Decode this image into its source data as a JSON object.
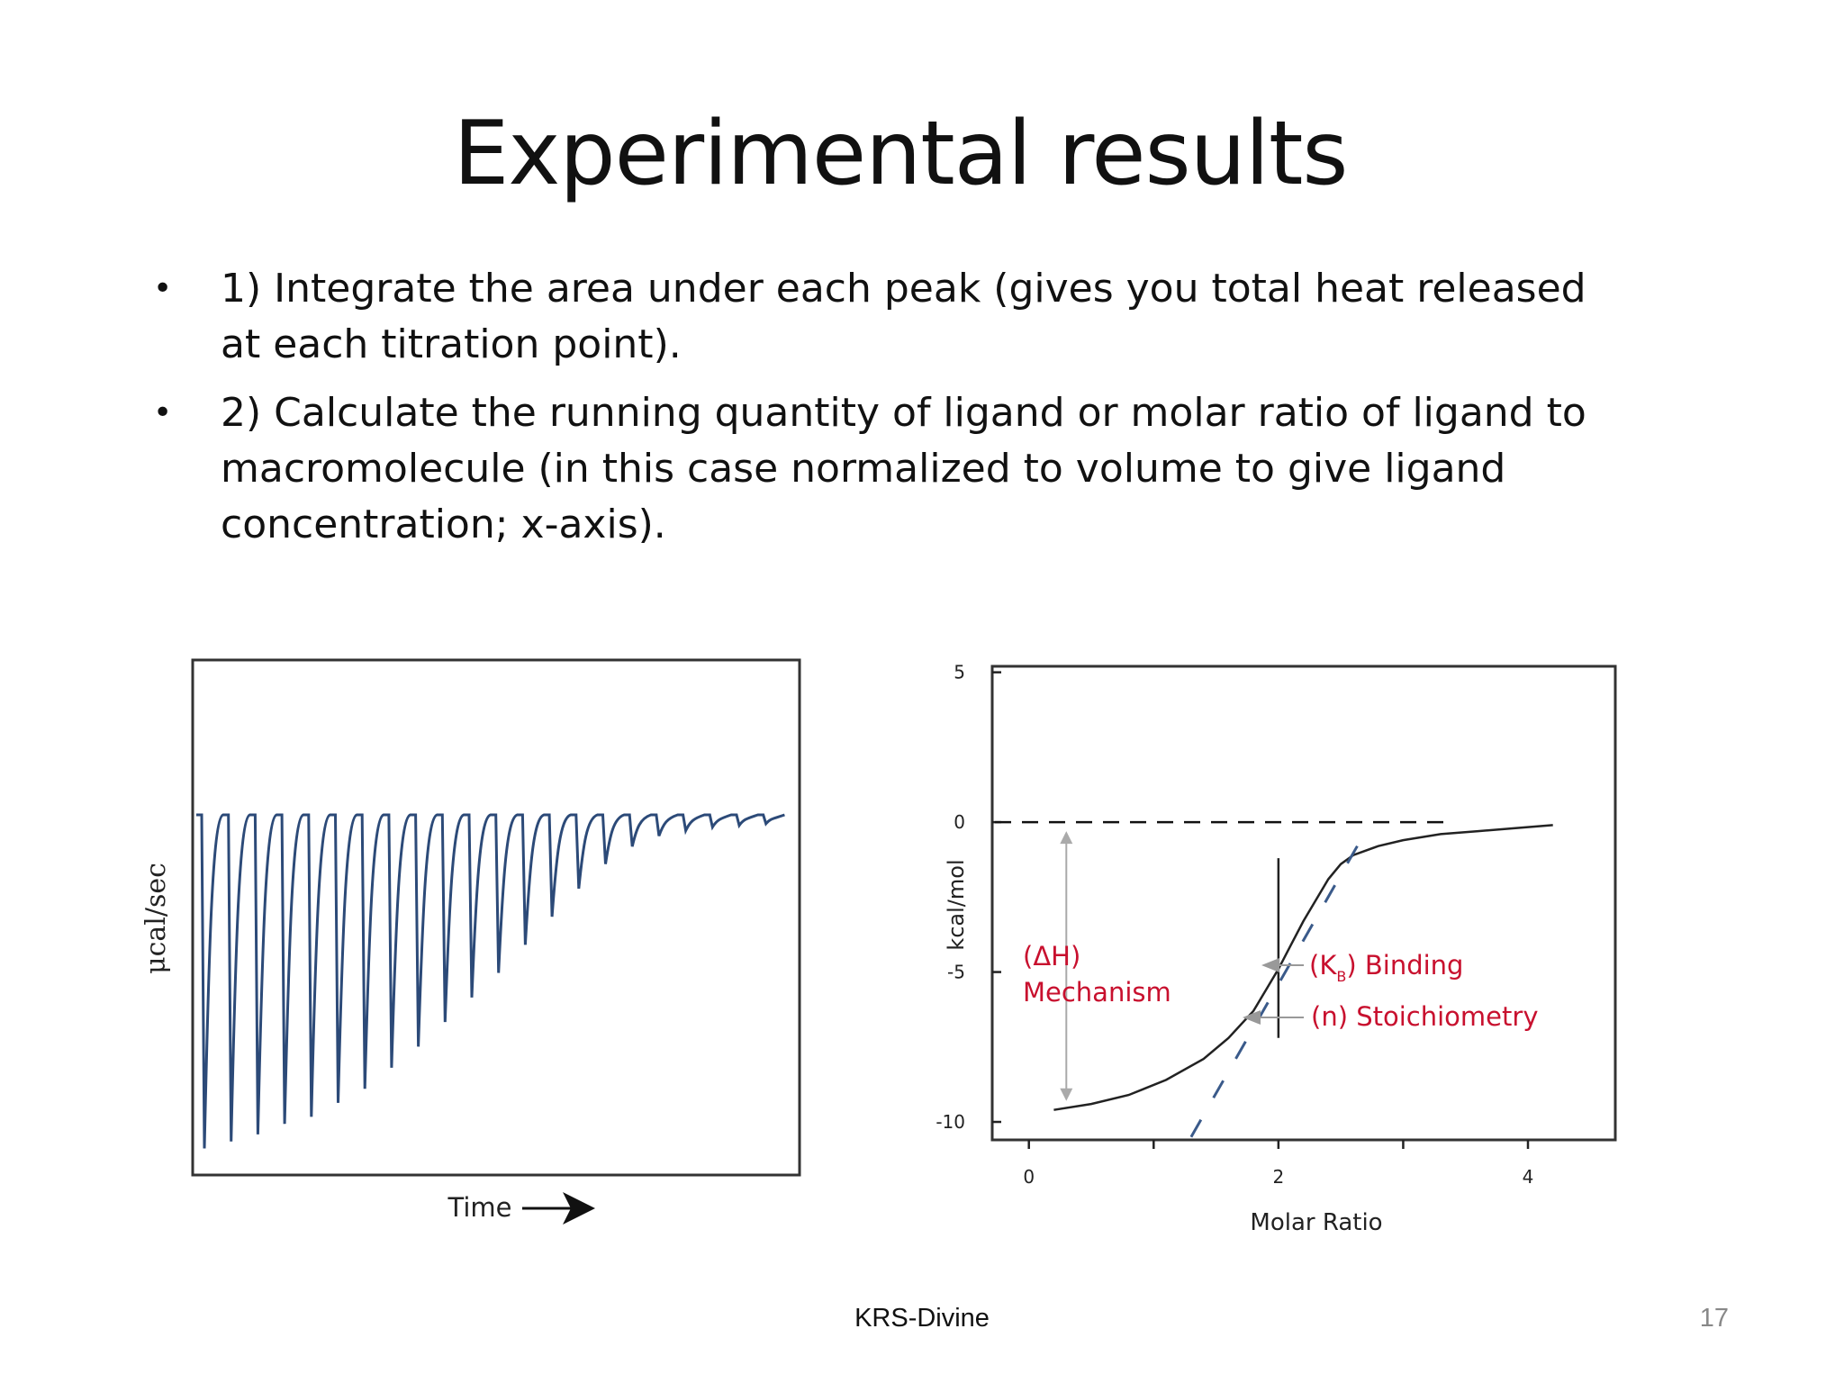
{
  "slide": {
    "title": "Experimental results",
    "bullets": [
      "1) Integrate the area under each peak (gives you total heat released at each titration point).",
      "2) Calculate the running quantity of ligand or molar ratio of ligand to macromolecule (in this case normalized to volume to give ligand concentration; x-axis)."
    ],
    "footer": "KRS-Divine",
    "page_number": "17"
  },
  "colors": {
    "thermogram_line": "#2c4a78",
    "annotation_red": "#c8102e",
    "axis": "#222222",
    "arrow_gray": "#999999"
  },
  "chart_data": [
    {
      "type": "line",
      "ylabel": "μcal/sec",
      "xlabel": "Time",
      "peak_depths": [
        0.95,
        0.93,
        0.91,
        0.88,
        0.86,
        0.82,
        0.78,
        0.72,
        0.66,
        0.59,
        0.52,
        0.45,
        0.37,
        0.29,
        0.21,
        0.14,
        0.09,
        0.06,
        0.045,
        0.035,
        0.03,
        0.025
      ]
    },
    {
      "type": "line",
      "xlabel": "Molar Ratio",
      "ylabel": "kcal/mol",
      "xticks": [
        "0",
        "2",
        "4"
      ],
      "yticks": [
        "5",
        "0",
        "-5",
        "-10"
      ],
      "xlim": [
        -0.2,
        4.7
      ],
      "ylim": [
        -10.6,
        5.2
      ],
      "series": [
        {
          "x": [
            0.2,
            0.5,
            0.8,
            1.1,
            1.4,
            1.6,
            1.8,
            1.9,
            2.0,
            2.1,
            2.2,
            2.3,
            2.4,
            2.5,
            2.6,
            2.8,
            3.0,
            3.3,
            3.6,
            3.9,
            4.2
          ],
          "y": [
            -9.6,
            -9.4,
            -9.1,
            -8.6,
            -7.9,
            -7.2,
            -6.3,
            -5.6,
            -4.9,
            -4.1,
            -3.3,
            -2.6,
            -1.9,
            -1.4,
            -1.1,
            -0.8,
            -0.6,
            -0.4,
            -0.3,
            -0.2,
            -0.1
          ]
        }
      ],
      "annotations": {
        "dh_line1": "(ΔH)",
        "dh_line2": "Mechanism",
        "kb_open": "(K",
        "kb_sub": "B",
        "kb_rest": ") Binding",
        "n_label": "(n) Stoichiometry"
      }
    }
  ]
}
